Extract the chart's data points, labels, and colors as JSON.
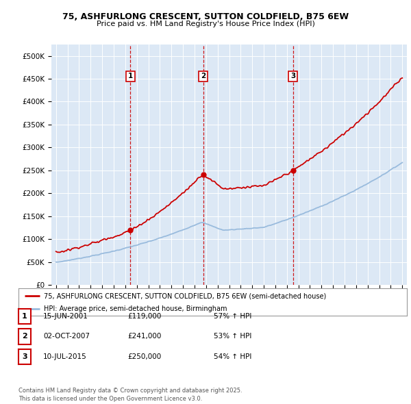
{
  "title_line1": "75, ASHFURLONG CRESCENT, SUTTON COLDFIELD, B75 6EW",
  "title_line2": "Price paid vs. HM Land Registry's House Price Index (HPI)",
  "plot_bg_color": "#dce8f5",
  "red_line_label": "75, ASHFURLONG CRESCENT, SUTTON COLDFIELD, B75 6EW (semi-detached house)",
  "blue_line_label": "HPI: Average price, semi-detached house, Birmingham",
  "sale_annotations": [
    {
      "num": 1,
      "date": "15-JUN-2001",
      "price": "£119,000",
      "pct": "57% ↑ HPI",
      "year": 2001.45,
      "price_val": 119000
    },
    {
      "num": 2,
      "date": "02-OCT-2007",
      "price": "£241,000",
      "pct": "53% ↑ HPI",
      "year": 2007.75,
      "price_val": 241000
    },
    {
      "num": 3,
      "date": "10-JUL-2015",
      "price": "£250,000",
      "pct": "54% ↑ HPI",
      "year": 2015.53,
      "price_val": 250000
    }
  ],
  "copyright_text": "Contains HM Land Registry data © Crown copyright and database right 2025.\nThis data is licensed under the Open Government Licence v3.0.",
  "ylim": [
    0,
    525000
  ],
  "xlim": [
    1994.6,
    2025.4
  ],
  "yticks": [
    0,
    50000,
    100000,
    150000,
    200000,
    250000,
    300000,
    350000,
    400000,
    450000,
    500000
  ],
  "xticks": [
    1995,
    1996,
    1997,
    1998,
    1999,
    2000,
    2001,
    2002,
    2003,
    2004,
    2005,
    2006,
    2007,
    2008,
    2009,
    2010,
    2011,
    2012,
    2013,
    2014,
    2015,
    2016,
    2017,
    2018,
    2019,
    2020,
    2021,
    2022,
    2023,
    2024,
    2025
  ]
}
